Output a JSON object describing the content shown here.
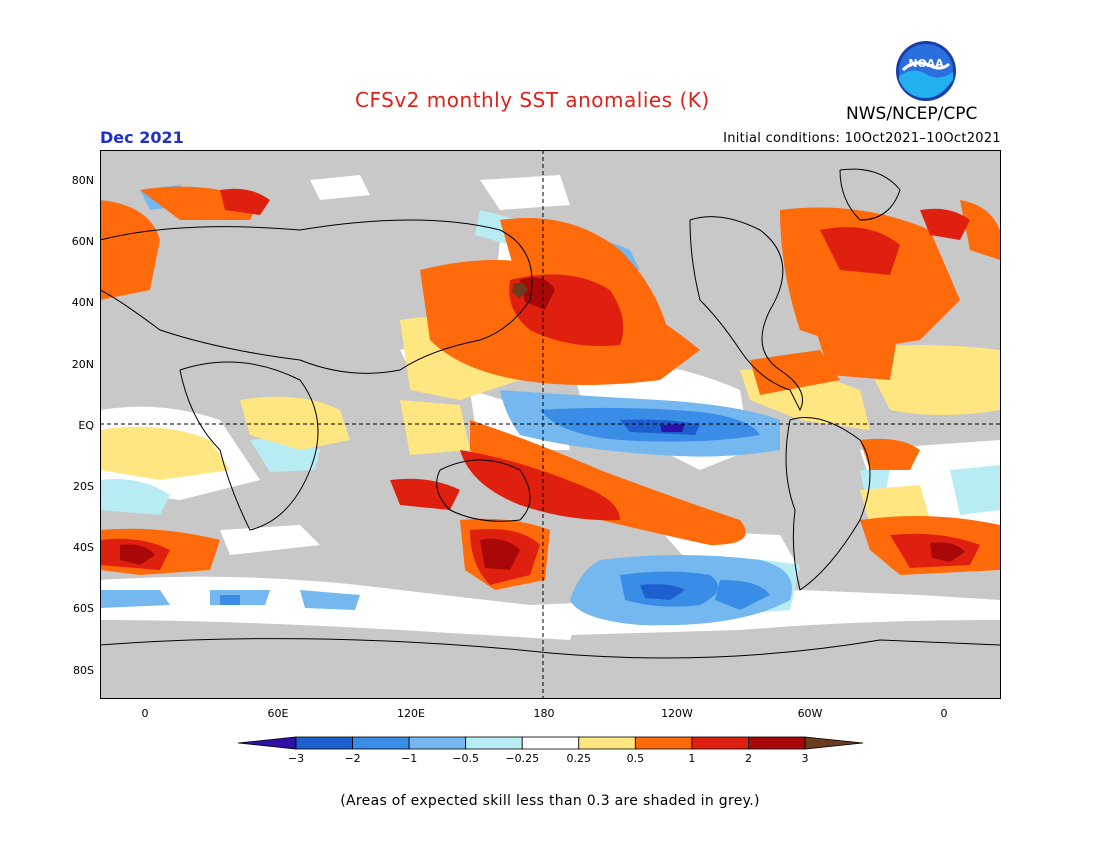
{
  "title": "CFSv2 monthly SST anomalies (K)",
  "organization": "NWS/NCEP/CPC",
  "logo_text": "NOAA",
  "forecast_month": "Dec 2021",
  "initial_conditions": "Initial conditions: 10Oct2021–10Oct2021",
  "lat_labels": [
    "80N",
    "60N",
    "40N",
    "20N",
    "EQ",
    "20S",
    "40S",
    "60S",
    "80S"
  ],
  "lon_labels": [
    "0",
    "60E",
    "120E",
    "180",
    "120W",
    "60W",
    "0"
  ],
  "colorbar": {
    "tick_labels": [
      "−3",
      "−2",
      "−1",
      "−0.5",
      "−0.25",
      "0.25",
      "0.5",
      "1",
      "2",
      "3"
    ],
    "colors": [
      "#2e0fa8",
      "#1d5fcf",
      "#3a8de6",
      "#74b8ef",
      "#b8ecf5",
      "#ffffff",
      "#ffe680",
      "#ff6a0a",
      "#e0200e",
      "#a80808",
      "#6a3c1e"
    ]
  },
  "footnote": "(Areas of expected skill less than 0.3 are shaded in grey.)",
  "colors": {
    "title": "#e0201a",
    "month": "#2030d0",
    "grey_mask": "#c8c8c8",
    "land": "#c0c0c0"
  }
}
